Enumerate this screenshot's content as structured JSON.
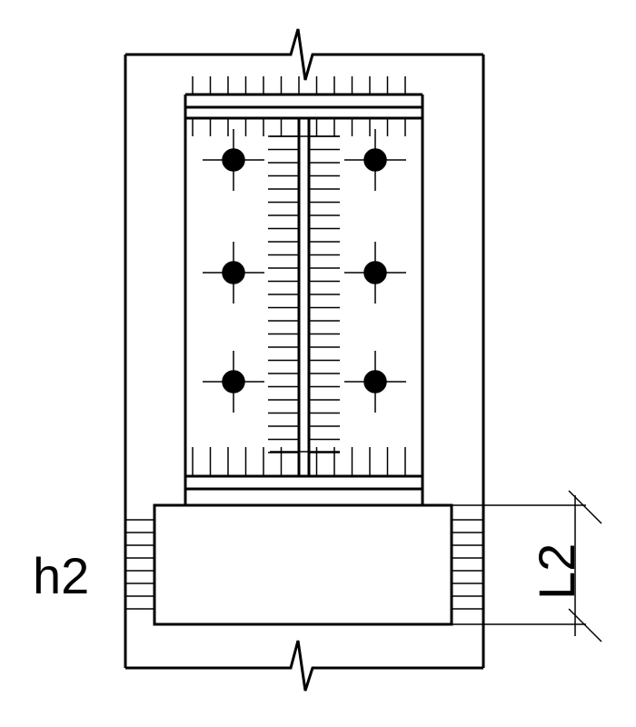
{
  "labels": {
    "h2": "h2",
    "L2": "L2"
  },
  "style": {
    "line_color": "#000000",
    "background_color": "#ffffff"
  },
  "structure": {
    "anchor_bolt_rows": 3,
    "anchor_bolt_columns": 2
  }
}
